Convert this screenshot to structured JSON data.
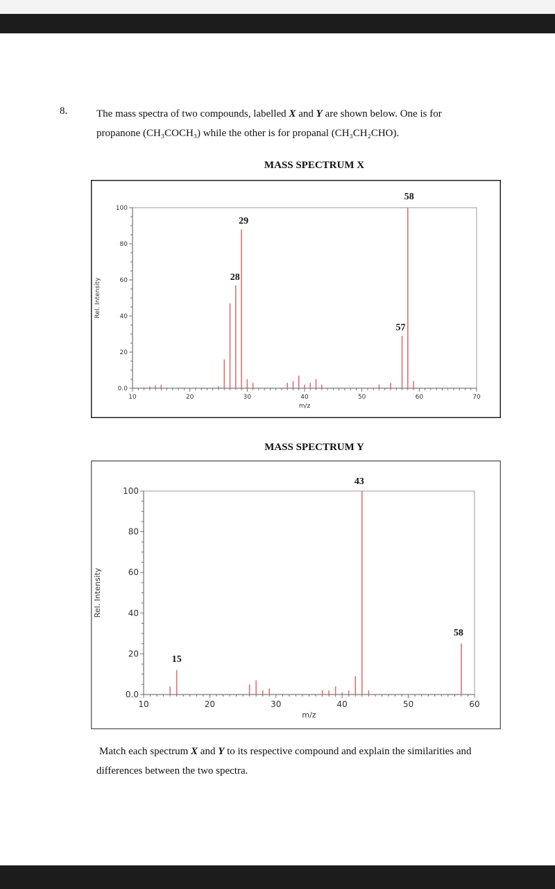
{
  "question": {
    "number": "8.",
    "line1_pre": "The mass spectra of two compounds, labelled ",
    "x": "X",
    "and": " and ",
    "y": "Y",
    "line1_post": " are shown below. One is for",
    "line2": "propanone (CH₃COCH₃) while the other is for propanal (CH₃CH₂CHO)."
  },
  "footer": {
    "pre": "Match each spectrum ",
    "x": "X",
    "and": " and ",
    "y": "Y",
    "post": " to its respective compound and explain the similarities and",
    "line2": "differences between the two spectra."
  },
  "chart_data": [
    {
      "type": "bar",
      "title": "MASS SPECTRUM X",
      "xlabel": "m/z",
      "ylabel": "Rel. Intensity",
      "xlim": [
        10,
        70
      ],
      "ylim": [
        0,
        100
      ],
      "xticks": [
        "10",
        "20",
        "30",
        "40",
        "50",
        "60",
        "70"
      ],
      "yticks": [
        "0.0",
        "20",
        "40",
        "60",
        "80",
        "100"
      ],
      "bar_color": "#e07070",
      "peaks": [
        {
          "x": 12,
          "y": 0.5
        },
        {
          "x": 13,
          "y": 1
        },
        {
          "x": 14,
          "y": 1.5
        },
        {
          "x": 15,
          "y": 2
        },
        {
          "x": 25,
          "y": 1
        },
        {
          "x": 26,
          "y": 16
        },
        {
          "x": 27,
          "y": 47
        },
        {
          "x": 28,
          "y": 57
        },
        {
          "x": 29,
          "y": 88
        },
        {
          "x": 30,
          "y": 5
        },
        {
          "x": 31,
          "y": 3
        },
        {
          "x": 37,
          "y": 3
        },
        {
          "x": 38,
          "y": 4
        },
        {
          "x": 39,
          "y": 7
        },
        {
          "x": 40,
          "y": 2
        },
        {
          "x": 41,
          "y": 3
        },
        {
          "x": 42,
          "y": 5
        },
        {
          "x": 43,
          "y": 2
        },
        {
          "x": 53,
          "y": 2
        },
        {
          "x": 55,
          "y": 3
        },
        {
          "x": 57,
          "y": 29
        },
        {
          "x": 58,
          "y": 100
        },
        {
          "x": 59,
          "y": 4
        }
      ],
      "labels": [
        {
          "x": 29,
          "text": "29"
        },
        {
          "x": 28,
          "text": "28"
        },
        {
          "x": 58,
          "text": "58"
        },
        {
          "x": 57,
          "text": "57"
        }
      ]
    },
    {
      "type": "bar",
      "title": "MASS SPECTRUM Y",
      "xlabel": "m/z",
      "ylabel": "Rel. Intensity",
      "xlim": [
        10,
        60
      ],
      "ylim": [
        0,
        100
      ],
      "xticks": [
        "10",
        "20",
        "30",
        "40",
        "50",
        "60"
      ],
      "yticks": [
        "0.0",
        "20",
        "40",
        "60",
        "80",
        "100"
      ],
      "bar_color": "#e07070",
      "peaks": [
        {
          "x": 14,
          "y": 4
        },
        {
          "x": 15,
          "y": 12
        },
        {
          "x": 26,
          "y": 5
        },
        {
          "x": 27,
          "y": 7
        },
        {
          "x": 28,
          "y": 2
        },
        {
          "x": 29,
          "y": 3
        },
        {
          "x": 37,
          "y": 2
        },
        {
          "x": 38,
          "y": 2
        },
        {
          "x": 39,
          "y": 4
        },
        {
          "x": 40,
          "y": 1
        },
        {
          "x": 41,
          "y": 2
        },
        {
          "x": 42,
          "y": 9
        },
        {
          "x": 43,
          "y": 100
        },
        {
          "x": 44,
          "y": 2
        },
        {
          "x": 58,
          "y": 25
        }
      ],
      "labels": [
        {
          "x": 43,
          "text": "43"
        },
        {
          "x": 15,
          "text": "15"
        },
        {
          "x": 58,
          "text": "58"
        }
      ]
    }
  ]
}
